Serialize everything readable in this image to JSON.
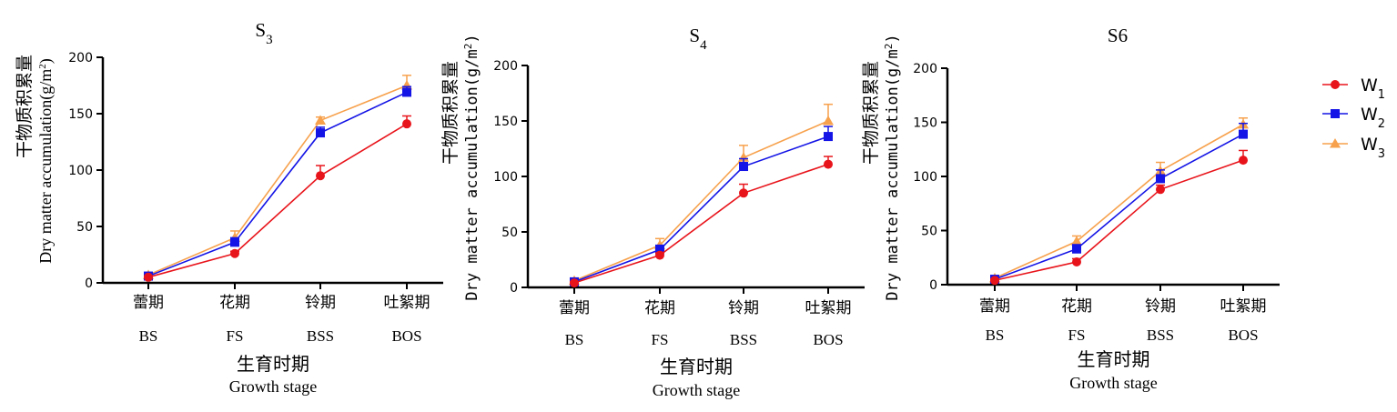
{
  "legend": {
    "placement": "right",
    "entries": [
      {
        "key": "W1",
        "main": "W",
        "sub": "1",
        "color": "#e8141b",
        "marker": "circle"
      },
      {
        "key": "W2",
        "main": "W",
        "sub": "2",
        "color": "#1414e6",
        "marker": "square"
      },
      {
        "key": "W3",
        "main": "W",
        "sub": "3",
        "color": "#f7a14c",
        "marker": "triangle"
      }
    ]
  },
  "chart_data": [
    {
      "type": "line",
      "title": "S3",
      "title_main": "S",
      "title_sub": "3",
      "ylabel_cn": "干物质积累量",
      "ylabel_en": "Dry matter accumulation",
      "ylabel_unit_pre": "(g/m",
      "ylabel_unit_sup": "2",
      "ylabel_unit_post": ")",
      "xlabel_cn": "生育时期",
      "xlabel_en": "Growth stage",
      "categories_cn": [
        "蕾期",
        "花期",
        "铃期",
        "吐絮期"
      ],
      "categories_en": [
        "BS",
        "FS",
        "BSS",
        "BOS"
      ],
      "ylim": [
        0,
        200
      ],
      "yticks": [
        "0",
        "50",
        "100",
        "150",
        "200"
      ],
      "grid": false,
      "series": [
        {
          "name": "W1",
          "values": [
            5,
            26,
            95,
            141
          ],
          "errors": [
            1,
            2,
            9,
            7
          ]
        },
        {
          "name": "W2",
          "values": [
            6,
            36,
            133,
            169
          ],
          "errors": [
            1,
            4,
            5,
            5
          ]
        },
        {
          "name": "W3",
          "values": [
            7,
            40,
            144,
            175
          ],
          "errors": [
            1,
            6,
            3,
            9
          ]
        }
      ]
    },
    {
      "type": "line",
      "title": "S4",
      "title_main": "S",
      "title_sub": "4",
      "ylabel_cn": "干物质积累量",
      "ylabel_en": "Dry matter accumulation",
      "ylabel_unit_pre": "(g/m",
      "ylabel_unit_sup": "2",
      "ylabel_unit_post": ")",
      "xlabel_cn": "生育时期",
      "xlabel_en": "Growth stage",
      "categories_cn": [
        "蕾期",
        "花期",
        "铃期",
        "吐絮期"
      ],
      "categories_en": [
        "BS",
        "FS",
        "BSS",
        "BOS"
      ],
      "ylim": [
        0,
        200
      ],
      "yticks": [
        "0",
        "50",
        "100",
        "150",
        "200"
      ],
      "grid": false,
      "series": [
        {
          "name": "W1",
          "values": [
            4,
            29,
            85,
            111
          ],
          "errors": [
            1,
            2,
            8,
            7
          ]
        },
        {
          "name": "W2",
          "values": [
            5,
            34,
            109,
            136
          ],
          "errors": [
            1,
            4,
            7,
            9
          ]
        },
        {
          "name": "W3",
          "values": [
            6,
            38,
            117,
            150
          ],
          "errors": [
            1,
            6,
            11,
            15
          ]
        }
      ]
    },
    {
      "type": "line",
      "title": "S6",
      "title_main": "S6",
      "title_sub": "",
      "ylabel_cn": "干物质积累量",
      "ylabel_en": "Dry matter accumulation",
      "ylabel_unit_pre": "(g/m",
      "ylabel_unit_sup": "2",
      "ylabel_unit_post": ")",
      "xlabel_cn": "生育时期",
      "xlabel_en": "Growth stage",
      "categories_cn": [
        "蕾期",
        "花期",
        "铃期",
        "吐絮期"
      ],
      "categories_en": [
        "BS",
        "FS",
        "BSS",
        "BOS"
      ],
      "ylim": [
        0,
        200
      ],
      "yticks": [
        "0",
        "50",
        "100",
        "150",
        "200"
      ],
      "grid": false,
      "series": [
        {
          "name": "W1",
          "values": [
            4,
            21,
            88,
            115
          ],
          "errors": [
            1,
            3,
            4,
            9
          ]
        },
        {
          "name": "W2",
          "values": [
            5,
            33,
            98,
            139
          ],
          "errors": [
            1,
            4,
            8,
            10
          ]
        },
        {
          "name": "W3",
          "values": [
            6,
            40,
            105,
            148
          ],
          "errors": [
            1,
            5,
            8,
            6
          ]
        }
      ]
    }
  ]
}
